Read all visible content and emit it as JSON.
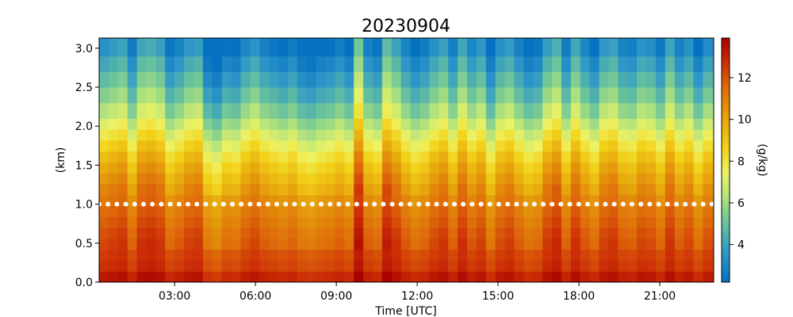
{
  "chart_data": {
    "type": "heatmap",
    "title": "20230904",
    "xlabel": "Time [UTC]",
    "ylabel": "(km)",
    "colorbar_label": "(g/kg)",
    "x_unit": "hours UTC",
    "xlim": [
      0.2,
      23.0
    ],
    "ylim": [
      0.0,
      3.13
    ],
    "x_ticks": [
      3,
      6,
      9,
      12,
      15,
      18,
      21
    ],
    "x_tick_labels": [
      "03:00",
      "06:00",
      "09:00",
      "12:00",
      "15:00",
      "18:00",
      "21:00"
    ],
    "y_ticks": [
      0.0,
      0.5,
      1.0,
      1.5,
      2.0,
      2.5,
      3.0
    ],
    "y_tick_labels": [
      "0.0",
      "0.5",
      "1.0",
      "1.5",
      "2.0",
      "2.5",
      "3.0"
    ],
    "colorbar_ticks": [
      4,
      6,
      8,
      10,
      12
    ],
    "colorbar_tick_labels": [
      "4",
      "6",
      "8",
      "10",
      "12"
    ],
    "clim": [
      2.2,
      13.9
    ],
    "colormap": "jet-like (blue → green → yellow → orange → dark red)",
    "grid": false,
    "marker_line": {
      "y": 1.0,
      "style": "dotted",
      "color": "#ffffff"
    },
    "heights_km": [
      0.0,
      0.14,
      0.28,
      0.42,
      0.56,
      0.7,
      0.84,
      0.98,
      1.12,
      1.26,
      1.4,
      1.54,
      1.68,
      1.82,
      1.96,
      2.1,
      2.3,
      2.5,
      2.7,
      2.9
    ],
    "moisture_profile_g_per_kg": [
      13.2,
      12.6,
      12.4,
      12.1,
      11.9,
      11.6,
      11.3,
      11.0,
      10.6,
      10.1,
      9.6,
      9.0,
      8.3,
      7.6,
      6.9,
      6.1,
      5.3,
      4.6,
      3.9,
      3.2
    ],
    "time_hours": [
      0.2,
      0.55,
      0.9,
      1.25,
      1.6,
      1.95,
      2.3,
      2.65,
      3.0,
      3.35,
      3.7,
      4.05,
      4.4,
      4.75,
      5.1,
      5.45,
      5.8,
      6.15,
      6.5,
      6.85,
      7.2,
      7.55,
      7.9,
      8.25,
      8.6,
      8.95,
      9.3,
      9.65,
      10.0,
      10.35,
      10.7,
      11.05,
      11.4,
      11.75,
      12.1,
      12.45,
      12.8,
      13.15,
      13.5,
      13.85,
      14.2,
      14.55,
      14.9,
      15.25,
      15.6,
      15.95,
      16.3,
      16.65,
      17.0,
      17.35,
      17.7,
      18.05,
      18.4,
      18.75,
      19.1,
      19.45,
      19.8,
      20.15,
      20.5,
      20.85,
      21.2,
      21.55,
      21.9,
      22.25,
      22.6
    ],
    "time_anomaly_g_per_kg": [
      0.2,
      0.5,
      0.8,
      -0.6,
      0.9,
      1.1,
      0.7,
      -0.8,
      -0.3,
      0.4,
      0.6,
      -1.4,
      -1.9,
      -0.9,
      -1.1,
      -0.2,
      0.3,
      -0.4,
      -0.7,
      -1.0,
      -0.6,
      -1.3,
      -1.5,
      -1.1,
      -0.9,
      -0.5,
      -1.0,
      2.0,
      -0.4,
      -0.8,
      1.6,
      0.8,
      -0.3,
      -1.0,
      -0.6,
      0.2,
      0.7,
      -0.5,
      0.9,
      -0.2,
      0.4,
      -1.2,
      0.1,
      0.5,
      -0.4,
      -1.1,
      -0.8,
      0.6,
      1.2,
      -0.6,
      0.9,
      -0.2,
      -0.9,
      0.4,
      0.7,
      -0.3,
      -0.5,
      0.3,
      0.1,
      -0.7,
      0.8,
      -0.4,
      0.2,
      -1.0,
      0.0
    ]
  }
}
